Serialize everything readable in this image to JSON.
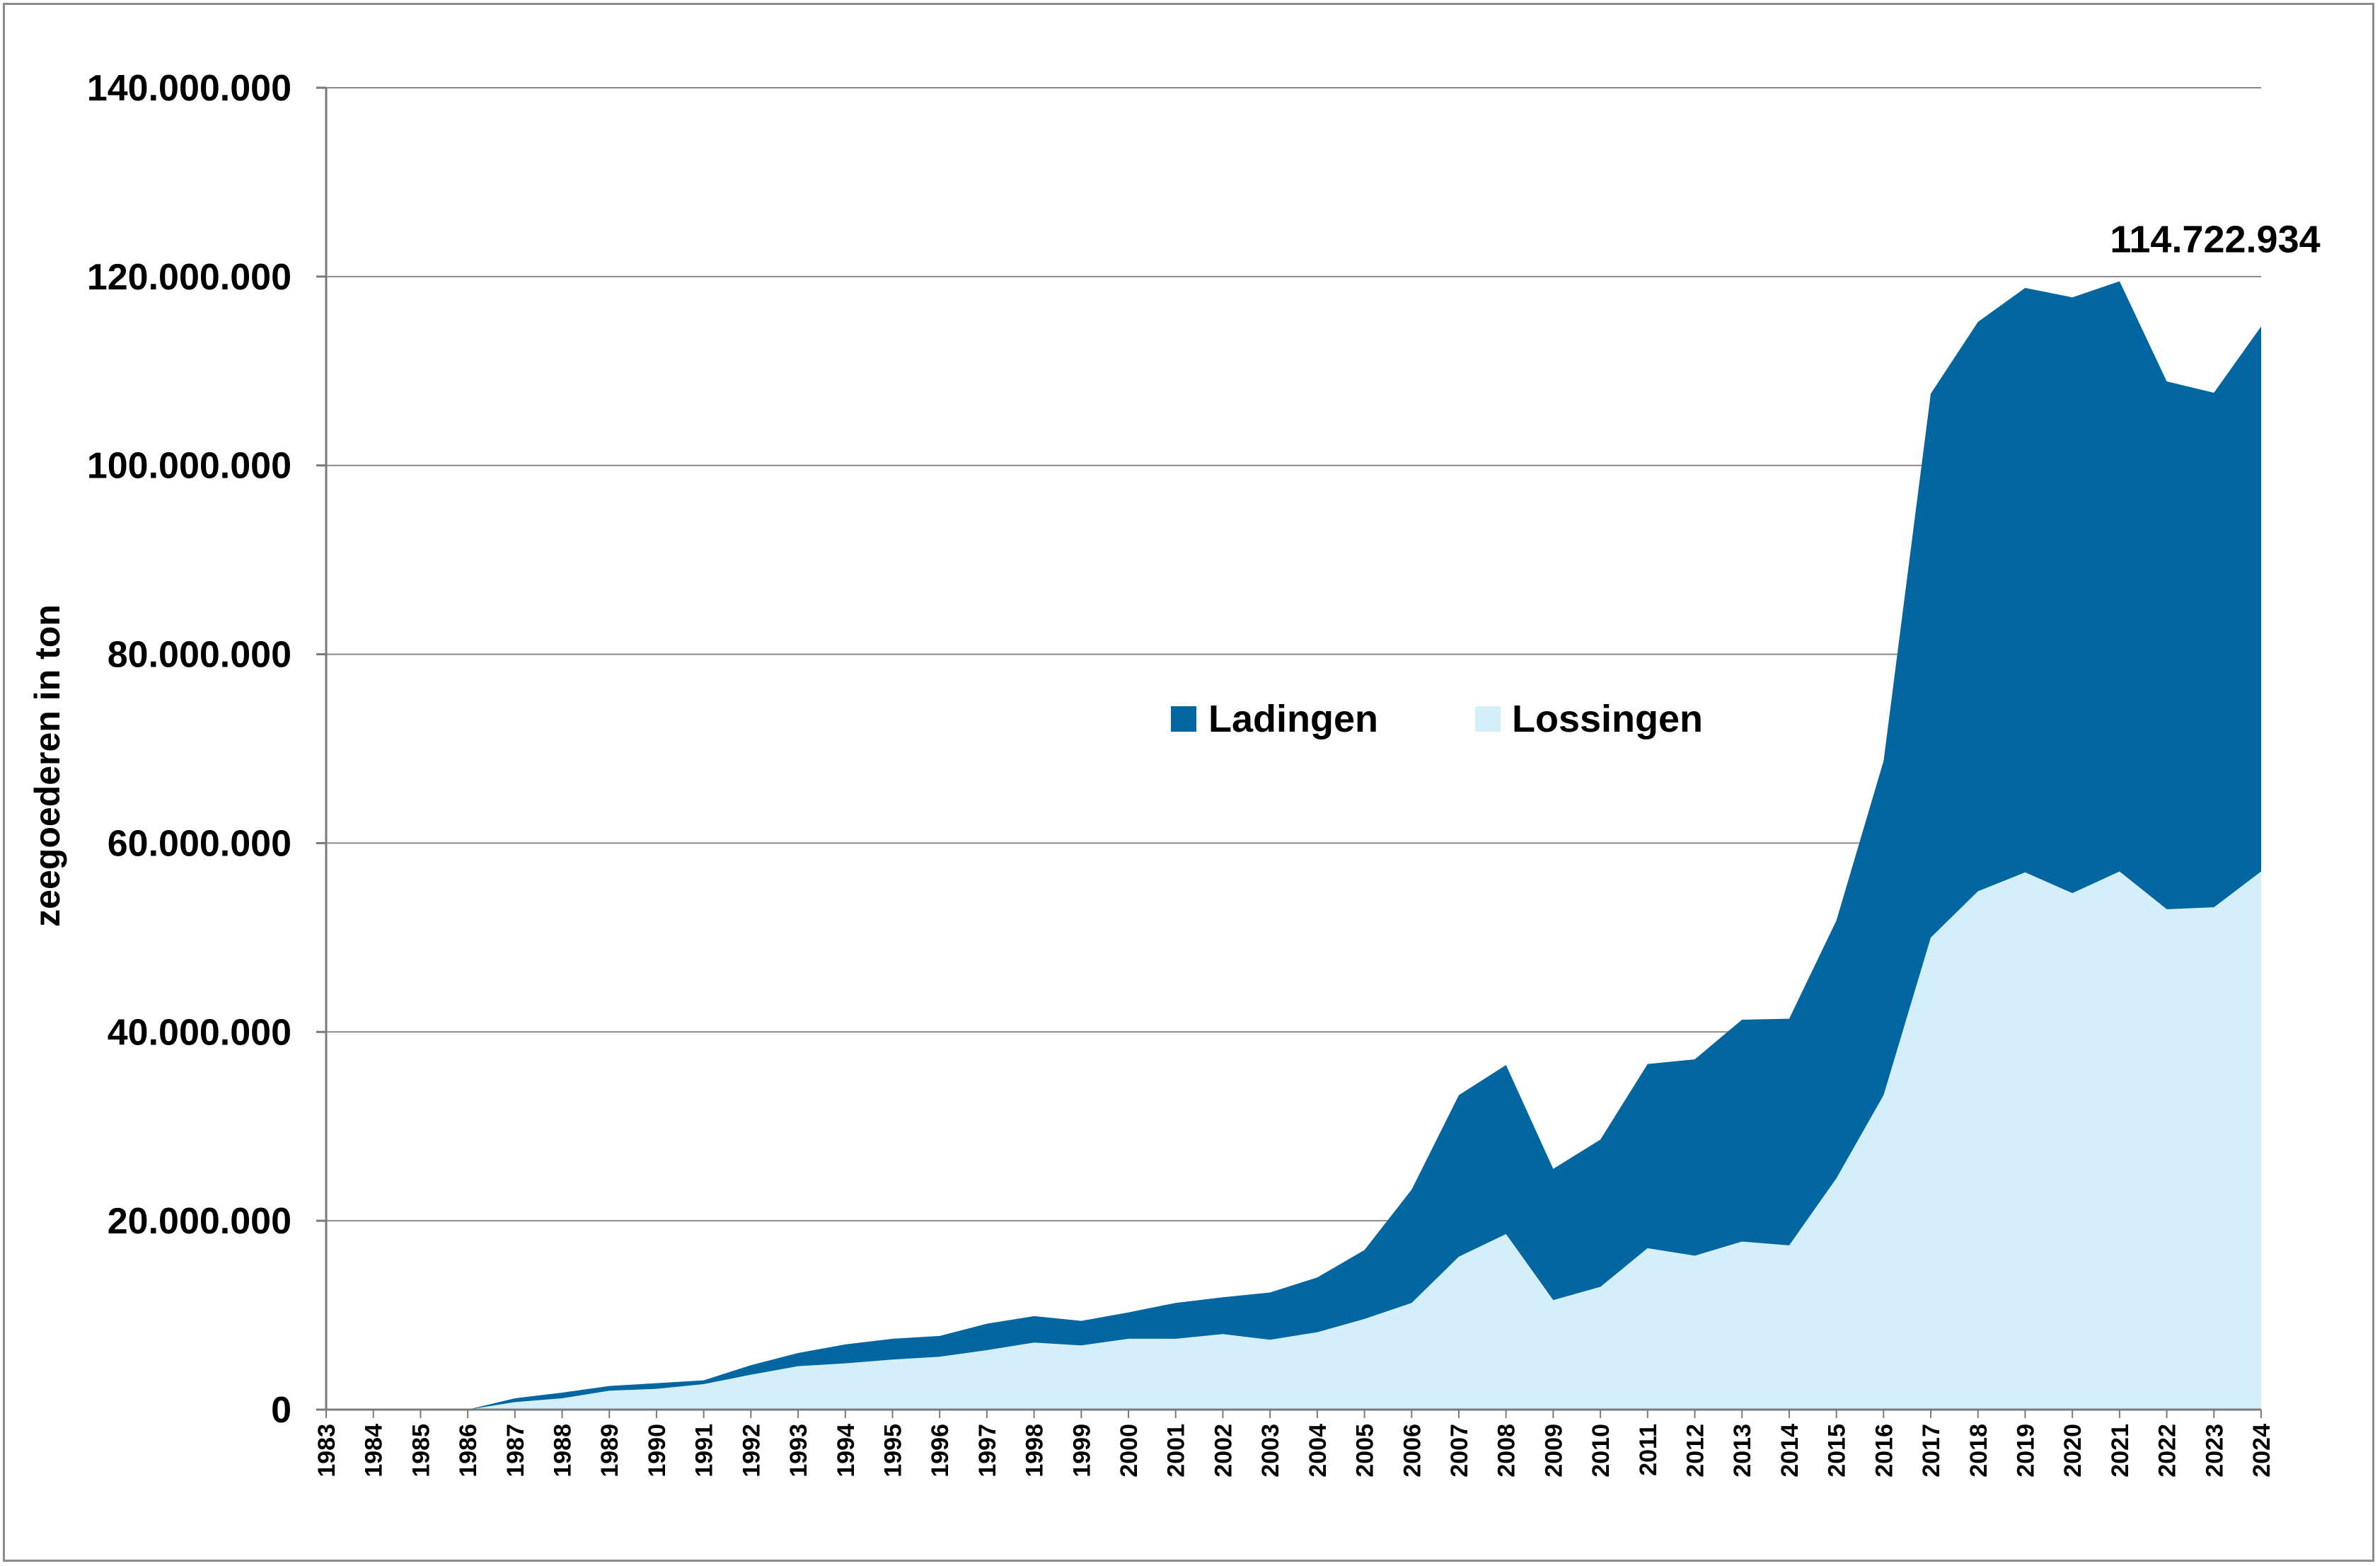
{
  "chart_data": {
    "type": "area",
    "stacked": true,
    "title": "",
    "xlabel": "",
    "ylabel": "zeegoederen in ton",
    "ylim": [
      0,
      140000000
    ],
    "yticks": [
      0,
      20000000,
      40000000,
      60000000,
      80000000,
      100000000,
      120000000,
      140000000
    ],
    "ytick_labels": [
      "0",
      "20.000.000",
      "40.000.000",
      "60.000.000",
      "80.000.000",
      "100.000.000",
      "120.000.000",
      "140.000.000"
    ],
    "grid": true,
    "legend_position": "center",
    "categories": [
      "1983",
      "1984",
      "1985",
      "1986",
      "1987",
      "1988",
      "1989",
      "1990",
      "1991",
      "1992",
      "1993",
      "1994",
      "1995",
      "1996",
      "1997",
      "1998",
      "1999",
      "2000",
      "2001",
      "2002",
      "2003",
      "2004",
      "2005",
      "2006",
      "2007",
      "2008",
      "2009",
      "2010",
      "2011",
      "2012",
      "2013",
      "2014",
      "2015",
      "2016",
      "2017",
      "2018",
      "2019",
      "2020",
      "2021",
      "2022",
      "2023",
      "2024"
    ],
    "series": [
      {
        "name": "Lossingen",
        "color": "#d4eefa",
        "values": [
          0,
          0,
          0,
          0,
          800000,
          1200000,
          2000000,
          2200000,
          2700000,
          3700000,
          4600000,
          4900000,
          5300000,
          5600000,
          6300000,
          7100000,
          6800000,
          7500000,
          7500000,
          8000000,
          7400000,
          8200000,
          9600000,
          11300000,
          16200000,
          18600000,
          11600000,
          13000000,
          17100000,
          16300000,
          17800000,
          17400000,
          24500000,
          33300000,
          50000000,
          54900000,
          56900000,
          54700000,
          57000000,
          53000000,
          53200000,
          57000000
        ]
      },
      {
        "name": "Ladingen",
        "color": "#0266a1",
        "values": [
          0,
          0,
          0,
          0,
          400000,
          600000,
          500000,
          600000,
          400000,
          1000000,
          1400000,
          2000000,
          2200000,
          2200000,
          2800000,
          2800000,
          2600000,
          2800000,
          3800000,
          3900000,
          5000000,
          5800000,
          7300000,
          12000000,
          17100000,
          17900000,
          13900000,
          15600000,
          19500000,
          20800000,
          23500000,
          24000000,
          27300000,
          35400000,
          57600000,
          60300000,
          61900000,
          63100000,
          62500000,
          55900000,
          54500000,
          57722934
        ]
      }
    ],
    "annotations": [
      {
        "text": "114.722.934",
        "x": "2024",
        "y": 114722934
      }
    ]
  }
}
